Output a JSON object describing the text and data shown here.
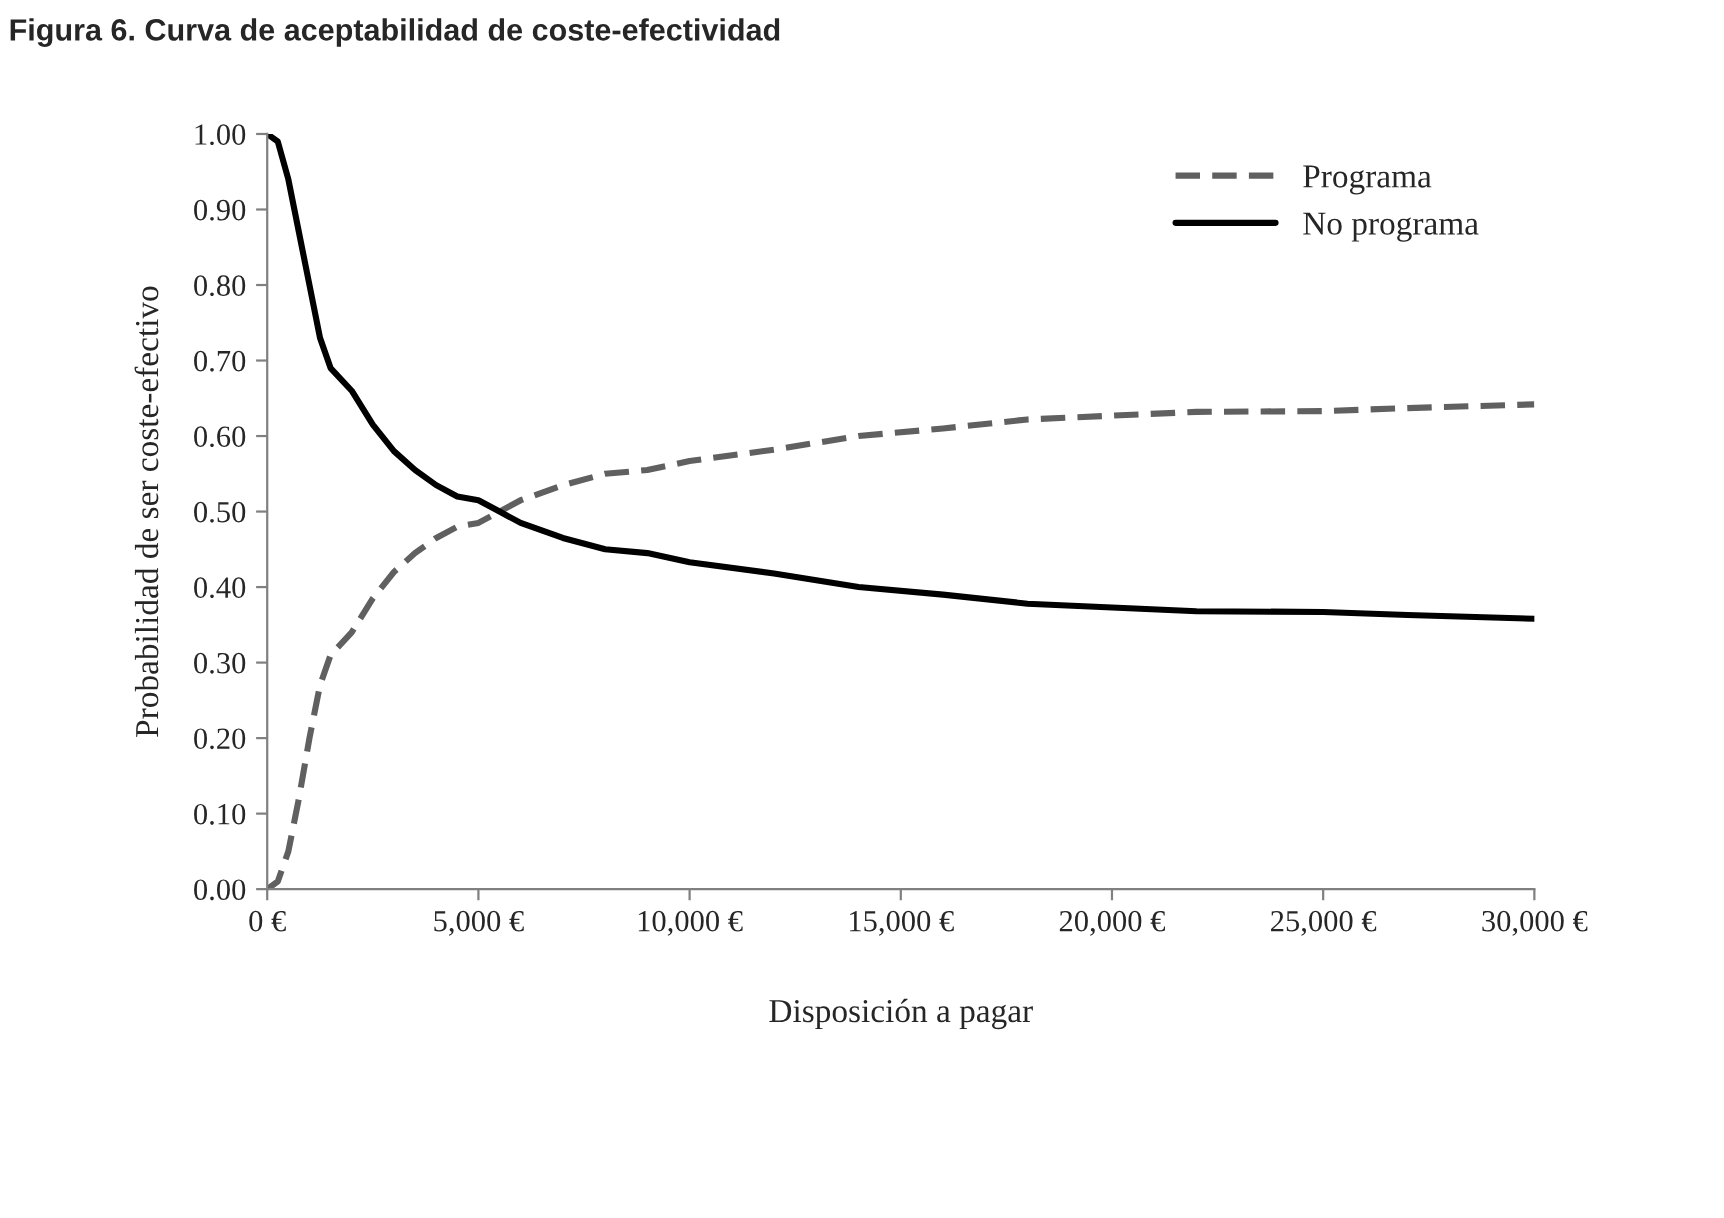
{
  "chart_data": {
    "type": "line",
    "title": "Figura 6. Curva de aceptabilidad de coste-efectividad",
    "xlabel": "Disposición a pagar",
    "ylabel": "Probabilidad de ser coste-efectivo",
    "series": [
      {
        "name": "Programa",
        "color": "#606060",
        "line_style": "dashed",
        "x": [
          0,
          250,
          500,
          750,
          1000,
          1250,
          1500,
          2000,
          2500,
          3000,
          3500,
          4000,
          4500,
          5000,
          5500,
          6000,
          7000,
          8000,
          9000,
          10000,
          12000,
          14000,
          16000,
          18000,
          20000,
          22000,
          25000,
          27000,
          30000
        ],
        "values": [
          0.0,
          0.01,
          0.05,
          0.12,
          0.2,
          0.27,
          0.31,
          0.34,
          0.385,
          0.42,
          0.445,
          0.465,
          0.48,
          0.485,
          0.5,
          0.515,
          0.535,
          0.55,
          0.555,
          0.567,
          0.582,
          0.6,
          0.61,
          0.622,
          0.627,
          0.632,
          0.633,
          0.637,
          0.642
        ]
      },
      {
        "name": "No programa",
        "color": "#000000",
        "line_style": "solid",
        "x": [
          0,
          250,
          500,
          750,
          1000,
          1250,
          1500,
          2000,
          2500,
          3000,
          3500,
          4000,
          4500,
          5000,
          5500,
          6000,
          7000,
          8000,
          9000,
          10000,
          12000,
          14000,
          16000,
          18000,
          20000,
          22000,
          25000,
          27000,
          30000
        ],
        "values": [
          1.0,
          0.99,
          0.94,
          0.87,
          0.8,
          0.73,
          0.69,
          0.66,
          0.615,
          0.58,
          0.555,
          0.535,
          0.52,
          0.515,
          0.5,
          0.485,
          0.465,
          0.45,
          0.445,
          0.433,
          0.418,
          0.4,
          0.39,
          0.378,
          0.373,
          0.368,
          0.367,
          0.363,
          0.358
        ]
      }
    ],
    "xlim": [
      0,
      30000
    ],
    "xticks": [
      {
        "value": 0,
        "label": "0 €"
      },
      {
        "value": 5000,
        "label": "5,000 €"
      },
      {
        "value": 10000,
        "label": "10,000 €"
      },
      {
        "value": 15000,
        "label": "15,000 €"
      },
      {
        "value": 20000,
        "label": "20,000 €"
      },
      {
        "value": 25000,
        "label": "25,000 €"
      },
      {
        "value": 30000,
        "label": "30,000 €"
      }
    ],
    "ylim": [
      0,
      1
    ],
    "yticks": [
      {
        "value": 0,
        "label": "0.00"
      },
      {
        "value": 0.1,
        "label": "0.10"
      },
      {
        "value": 0.2,
        "label": "0.20"
      },
      {
        "value": 0.3,
        "label": "0.30"
      },
      {
        "value": 0.4,
        "label": "0.40"
      },
      {
        "value": 0.5,
        "label": "0.50"
      },
      {
        "value": 0.6,
        "label": "0.60"
      },
      {
        "value": 0.7,
        "label": "0.70"
      },
      {
        "value": 0.8,
        "label": "0.80"
      },
      {
        "value": 0.9,
        "label": "0.90"
      },
      {
        "value": 1,
        "label": "1.00"
      }
    ],
    "grid": false,
    "legend": "top right",
    "marker": "none"
  }
}
